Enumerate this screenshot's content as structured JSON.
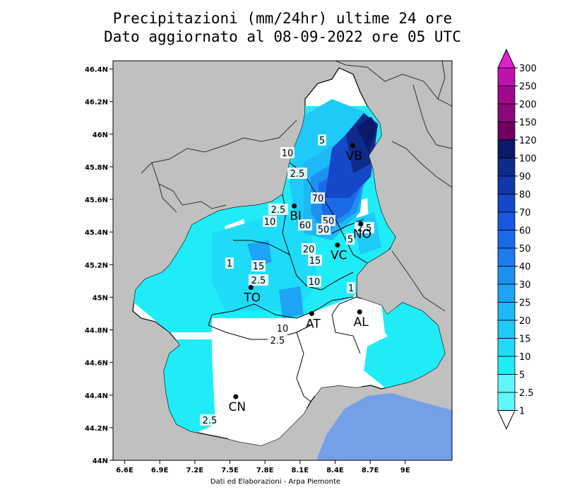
{
  "title_line1": "Precipitazioni (mm/24hr) ultime 24 ore",
  "title_line2": "Dato aggiornato al 08-09-2022 ore 05 UTC",
  "credit": "Dati ed Elaborazioni - Arpa Piemonte",
  "map": {
    "lon_range": [
      6.5,
      9.4
    ],
    "lat_range": [
      44.0,
      46.45
    ],
    "lat_ticks": [
      "46.4N",
      "46.2N",
      "46N",
      "45.8N",
      "45.6N",
      "45.4N",
      "45.2N",
      "45N",
      "44.8N",
      "44.6N",
      "44.4N",
      "44.2N",
      "44N"
    ],
    "lon_ticks": [
      "6.6E",
      "6.9E",
      "7.2E",
      "7.5E",
      "7.8E",
      "8.1E",
      "8.4E",
      "8.7E",
      "9E"
    ],
    "cities": [
      {
        "label": "VB",
        "lon": 8.55,
        "lat": 45.93
      },
      {
        "label": "BI",
        "lon": 8.05,
        "lat": 45.56
      },
      {
        "label": "NO",
        "lon": 8.62,
        "lat": 45.45
      },
      {
        "label": "VC",
        "lon": 8.42,
        "lat": 45.32
      },
      {
        "label": "TO",
        "lon": 7.68,
        "lat": 45.06
      },
      {
        "label": "AT",
        "lon": 8.2,
        "lat": 44.9
      },
      {
        "label": "AL",
        "lon": 8.61,
        "lat": 44.91
      },
      {
        "label": "CN",
        "lon": 7.55,
        "lat": 44.39
      }
    ],
    "contour_labels": [
      "5",
      "10",
      "2.5",
      "70",
      "2.5",
      "10",
      "50",
      "60",
      "50",
      "2.5",
      "5",
      "20",
      "15",
      "1",
      "15",
      "2.5",
      "10",
      "1",
      "10",
      "2.5",
      "2.5"
    ]
  },
  "colorbar": {
    "levels": [
      "300",
      "250",
      "200",
      "150",
      "120",
      "100",
      "90",
      "80",
      "70",
      "60",
      "50",
      "40",
      "30",
      "25",
      "20",
      "15",
      "10",
      "5",
      "2.5",
      "1"
    ],
    "colors": [
      "#e020d0",
      "#c010b0",
      "#a00890",
      "#8a0878",
      "#700060",
      "#0a1a6a",
      "#0e2a8a",
      "#1236a8",
      "#1448c8",
      "#1858e0",
      "#1a6ae8",
      "#1c7cec",
      "#1e90f0",
      "#1ea4f4",
      "#1eb8f6",
      "#1ecaf8",
      "#1edcf8",
      "#20ecf8",
      "#60f6fa"
    ]
  }
}
